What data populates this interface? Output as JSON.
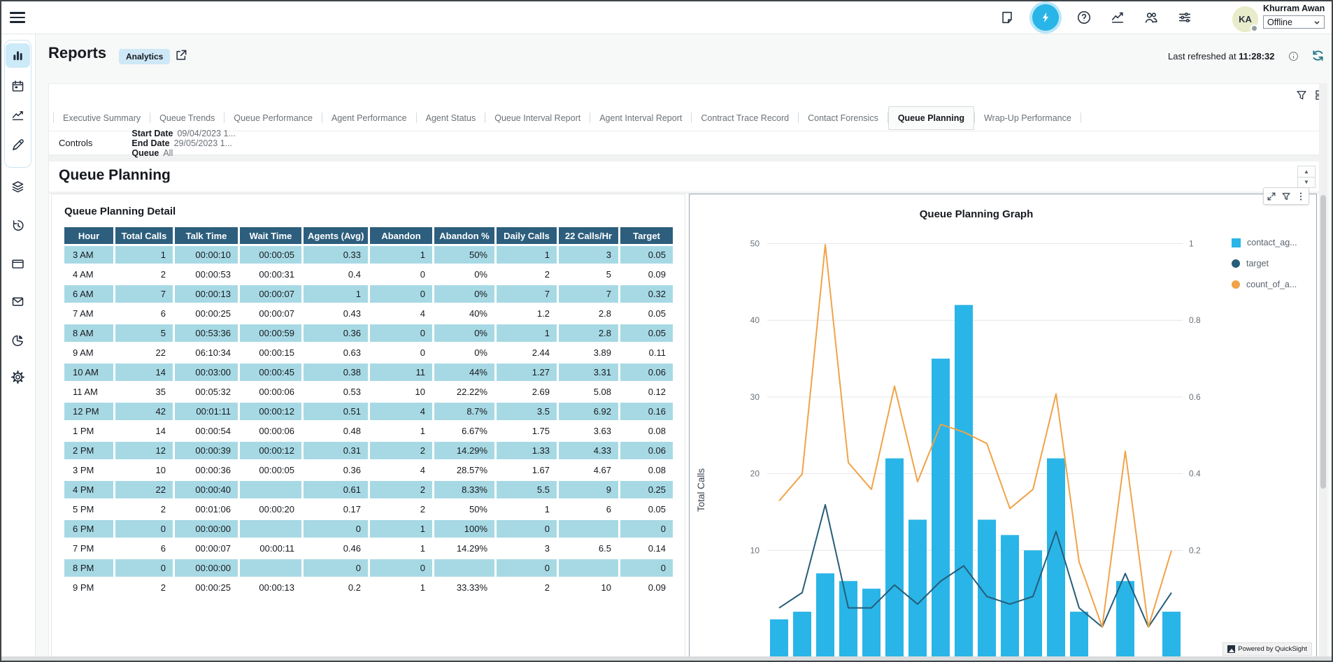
{
  "topbar": {
    "icons": [
      "note-icon",
      "bolt-icon",
      "help-icon",
      "metrics-icon",
      "users-icon",
      "sliders-icon"
    ],
    "user": {
      "initials": "KA",
      "name": "Khurram Awan",
      "status": "Offline"
    }
  },
  "sidebar": {
    "items": [
      "reports",
      "calendar",
      "metrics",
      "design",
      "layers",
      "history",
      "window",
      "mail",
      "pie-chart",
      "settings"
    ]
  },
  "header": {
    "title": "Reports",
    "badge": "Analytics",
    "last_refreshed_label": "Last refreshed at ",
    "last_refreshed_time": "11:28:32"
  },
  "tabs": [
    {
      "label": "Executive Summary",
      "active": false
    },
    {
      "label": "Queue Trends",
      "active": false
    },
    {
      "label": "Queue Performance",
      "active": false
    },
    {
      "label": "Agent Performance",
      "active": false
    },
    {
      "label": "Agent Status",
      "active": false
    },
    {
      "label": "Queue Interval Report",
      "active": false
    },
    {
      "label": "Agent Interval Report",
      "active": false
    },
    {
      "label": "Contract Trace Record",
      "active": false
    },
    {
      "label": "Contact Forensics",
      "active": false
    },
    {
      "label": "Queue Planning",
      "active": true
    },
    {
      "label": "Wrap-Up Performance",
      "active": false
    }
  ],
  "controls": {
    "label": "Controls",
    "filters": [
      {
        "label": "Start Date",
        "value": "09/04/2023 1..."
      },
      {
        "label": "End Date",
        "value": "29/05/2023 1..."
      },
      {
        "label": "Queue",
        "value": "All"
      }
    ]
  },
  "section_title": "Queue Planning",
  "table": {
    "title": "Queue Planning Detail",
    "columns": [
      "Hour",
      "Total Calls",
      "Talk Time",
      "Wait Time",
      "Agents (Avg)",
      "Abandon",
      "Abandon %",
      "Daily Calls",
      "22 Calls/Hr",
      "Target"
    ],
    "rows": [
      [
        "3 AM",
        "1",
        "00:00:10",
        "00:00:05",
        "0.33",
        "1",
        "50%",
        "1",
        "3",
        "0.05"
      ],
      [
        "4 AM",
        "2",
        "00:00:53",
        "00:00:31",
        "0.4",
        "0",
        "0%",
        "2",
        "5",
        "0.09"
      ],
      [
        "6 AM",
        "7",
        "00:00:13",
        "00:00:07",
        "1",
        "0",
        "0%",
        "7",
        "7",
        "0.32"
      ],
      [
        "7 AM",
        "6",
        "00:00:25",
        "00:00:07",
        "0.43",
        "4",
        "40%",
        "1.2",
        "2.8",
        "0.05"
      ],
      [
        "8 AM",
        "5",
        "00:53:36",
        "00:00:59",
        "0.36",
        "0",
        "0%",
        "1",
        "2.8",
        "0.05"
      ],
      [
        "9 AM",
        "22",
        "06:10:34",
        "00:00:15",
        "0.63",
        "0",
        "0%",
        "2.44",
        "3.89",
        "0.11"
      ],
      [
        "10 AM",
        "14",
        "00:03:00",
        "00:00:45",
        "0.38",
        "11",
        "44%",
        "1.27",
        "3.31",
        "0.06"
      ],
      [
        "11 AM",
        "35",
        "00:05:32",
        "00:00:06",
        "0.53",
        "10",
        "22.22%",
        "2.69",
        "5.08",
        "0.12"
      ],
      [
        "12 PM",
        "42",
        "00:01:11",
        "00:00:12",
        "0.51",
        "4",
        "8.7%",
        "3.5",
        "6.92",
        "0.16"
      ],
      [
        "1 PM",
        "14",
        "00:00:54",
        "00:00:06",
        "0.48",
        "1",
        "6.67%",
        "1.75",
        "3.63",
        "0.08"
      ],
      [
        "2 PM",
        "12",
        "00:00:39",
        "00:00:12",
        "0.31",
        "2",
        "14.29%",
        "1.33",
        "4.33",
        "0.06"
      ],
      [
        "3 PM",
        "10",
        "00:00:36",
        "00:00:05",
        "0.36",
        "4",
        "28.57%",
        "1.67",
        "4.67",
        "0.08"
      ],
      [
        "4 PM",
        "22",
        "00:00:40",
        "",
        "0.61",
        "2",
        "8.33%",
        "5.5",
        "9",
        "0.25"
      ],
      [
        "5 PM",
        "2",
        "00:01:06",
        "00:00:20",
        "0.17",
        "2",
        "50%",
        "1",
        "6",
        "0.05"
      ],
      [
        "6 PM",
        "0",
        "00:00:00",
        "",
        "0",
        "1",
        "100%",
        "0",
        "",
        "0"
      ],
      [
        "7 PM",
        "6",
        "00:00:07",
        "00:00:11",
        "0.46",
        "1",
        "14.29%",
        "3",
        "6.5",
        "0.14"
      ],
      [
        "8 PM",
        "0",
        "00:00:00",
        "",
        "0",
        "0",
        "",
        "0",
        "",
        "0"
      ],
      [
        "9 PM",
        "2",
        "00:00:25",
        "00:00:13",
        "0.2",
        "1",
        "33.33%",
        "2",
        "10",
        "0.09"
      ]
    ]
  },
  "chart_data": {
    "type": "combo",
    "title": "Queue Planning Graph",
    "categories": [
      "3 AM",
      "4 AM",
      "6 AM",
      "7 AM",
      "8 AM",
      "9 AM",
      "10 AM",
      "11 AM",
      "12 PM",
      "1 PM",
      "2 PM",
      "3 PM",
      "4 PM",
      "5 PM",
      "6 PM",
      "7 PM",
      "8 PM",
      "9 PM"
    ],
    "series": [
      {
        "name": "contact_ag...",
        "type": "bar",
        "axis": "left",
        "color": "#29b5e8",
        "values": [
          1,
          2,
          7,
          6,
          5,
          22,
          14,
          35,
          42,
          14,
          12,
          10,
          22,
          2,
          0,
          6,
          0,
          2
        ]
      },
      {
        "name": "target",
        "type": "line",
        "axis": "right",
        "color": "#275d78",
        "values": [
          0.05,
          0.09,
          0.32,
          0.05,
          0.05,
          0.11,
          0.06,
          0.12,
          0.16,
          0.08,
          0.06,
          0.08,
          0.25,
          0.05,
          0,
          0.14,
          0,
          0.09
        ]
      },
      {
        "name": "count_of_a...",
        "type": "line",
        "axis": "right",
        "color": "#f0a348",
        "values": [
          0.33,
          0.4,
          1,
          0.43,
          0.36,
          0.63,
          0.38,
          0.53,
          0.51,
          0.48,
          0.31,
          0.36,
          0.61,
          0.17,
          0,
          0.46,
          0,
          0.2
        ]
      }
    ],
    "left_axis": {
      "label": "Total Calls",
      "ticks": [
        10,
        20,
        30,
        40,
        50
      ],
      "range_visible": [
        0,
        50
      ]
    },
    "right_axis": {
      "ticks": [
        0.2,
        0.4,
        0.6,
        0.8,
        1
      ],
      "range_visible": [
        0,
        1
      ]
    },
    "legend_position": "right",
    "x_axis_labels_visible": false,
    "grid": true
  },
  "footer": {
    "powered_by": "Powered by QuickSight"
  }
}
